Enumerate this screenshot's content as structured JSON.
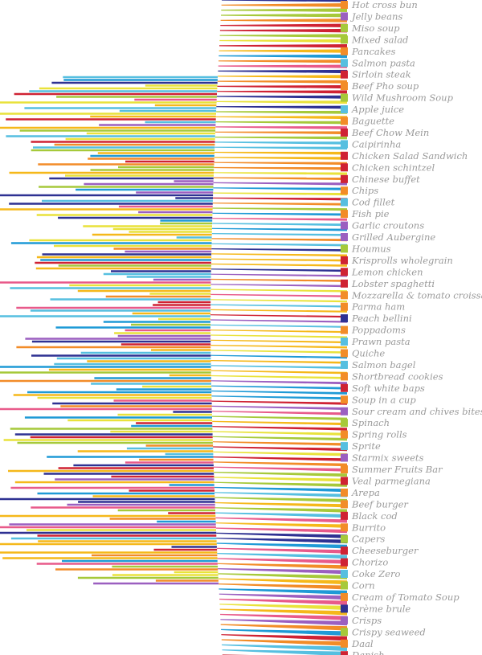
{
  "chart_data": {
    "type": "bar",
    "title": "",
    "xlabel": "",
    "ylabel": "",
    "legend": "right",
    "palette": [
      "#f28c28",
      "#cf2233",
      "#a6c93a",
      "#56bfe0",
      "#f5b81a",
      "#9b5fc0",
      "#2e3192",
      "#e85a8a",
      "#e9e23b",
      "#1f9ad6"
    ],
    "categories": [
      "Hot cross bun",
      "Jelly beans",
      "Miso soup",
      "Mixed salad",
      "Pancakes",
      "Salmon pasta",
      "Sirloin steak",
      "Beef Pho soup",
      "Wild Mushroom Soup",
      "Apple juice",
      "Baguette",
      "Beef Chow Mein",
      "Caipirinha",
      "Chicken Salad Sandwich",
      "Chicken schintzel",
      "Chinese buffet",
      "Chips",
      "Cod fillet",
      "Fish pie",
      "Garlic croutons",
      "Grilled Aubergine",
      "Houmus",
      "Krisprolls wholegrain",
      "Lemon chicken",
      "Lobster spaghetti",
      "Mozzarella & tomato croissant",
      "Parma ham",
      "Peach bellini",
      "Poppadoms",
      "Prawn pasta",
      "Quiche",
      "Salmon bagel",
      "Shortbread cookies",
      "Soft white baps",
      "Soup in a cup",
      "Sour cream and chives bites",
      "Spinach",
      "Spring rolls",
      "Sprite",
      "Starmix sweets",
      "Summer Fruits Bar",
      "Veal parmegiana",
      "Arepa",
      "Beef burger",
      "Black cod",
      "Burrito",
      "Capers",
      "Cheeseburger",
      "Chorizo",
      "Coke Zero",
      "Corn",
      "Cream of Tomato Soup",
      "Crème brule",
      "Crisps",
      "Crispy seaweed",
      "Daal",
      "Danish"
    ],
    "legend_colors": [
      "#f28c28",
      "#9b5fc0",
      "#a6c93a",
      "#a6c93a",
      "#f28c28",
      "#56bfe0",
      "#cf2233",
      "#f28c28",
      "#a6c93a",
      "#56bfe0",
      "#f28c28",
      "#cf2233",
      "#56bfe0",
      "#cf2233",
      "#cf2233",
      "#cf2233",
      "#f28c28",
      "#56bfe0",
      "#f28c28",
      "#9b5fc0",
      "#9b5fc0",
      "#a6c93a",
      "#cf2233",
      "#cf2233",
      "#cf2233",
      "#f28c28",
      "#f28c28",
      "#2e3192",
      "#f28c28",
      "#56bfe0",
      "#f28c28",
      "#56bfe0",
      "#f28c28",
      "#cf2233",
      "#f28c28",
      "#9b5fc0",
      "#a6c93a",
      "#f28c28",
      "#56bfe0",
      "#9b5fc0",
      "#f28c28",
      "#cf2233",
      "#f28c28",
      "#f28c28",
      "#cf2233",
      "#f28c28",
      "#a6c93a",
      "#cf2233",
      "#cf2233",
      "#56bfe0",
      "#a6c93a",
      "#f28c28",
      "#2e3192",
      "#9b5fc0",
      "#a6c93a",
      "#f28c28",
      "#cf2233"
    ]
  }
}
